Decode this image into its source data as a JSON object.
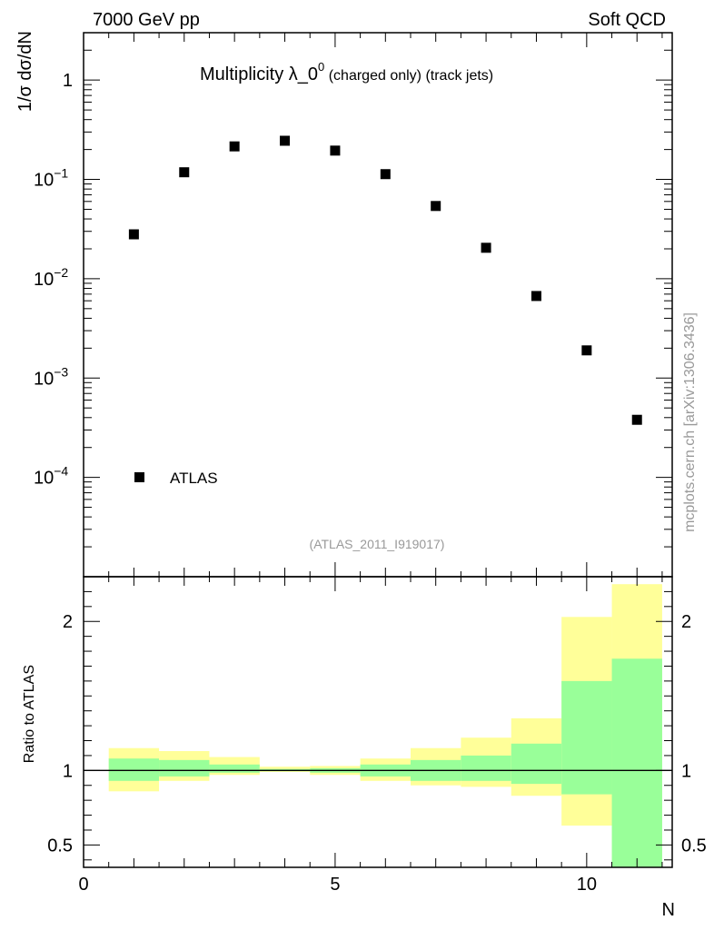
{
  "header": {
    "left": "7000 GeV pp",
    "right": "Soft QCD"
  },
  "side_label": "mcplots.cern.ch [arXiv:1306.3436]",
  "chart_data": [
    {
      "type": "scatter",
      "title_main": "Multiplicity λ_0",
      "title_sup": "0",
      "title_rest": " (charged only) (track jets)",
      "ylabel": "1/σ dσ/dN",
      "yscale": "log",
      "ylim": [
        1e-05,
        3
      ],
      "xlim": [
        0,
        11.7
      ],
      "y_ticks": [
        {
          "v": 1,
          "base": "1",
          "exp": ""
        },
        {
          "v": 0.1,
          "base": "10",
          "exp": "−1"
        },
        {
          "v": 0.01,
          "base": "10",
          "exp": "−2"
        },
        {
          "v": 0.001,
          "base": "10",
          "exp": "−3"
        },
        {
          "v": 0.0001,
          "base": "10",
          "exp": "−4"
        }
      ],
      "legend": [
        "ATLAS"
      ],
      "annotation": "(ATLAS_2011_I919017)",
      "series": [
        {
          "name": "ATLAS",
          "x": [
            1,
            2,
            3,
            4,
            5,
            6,
            7,
            8,
            9,
            10,
            11
          ],
          "values": [
            0.028,
            0.118,
            0.215,
            0.245,
            0.195,
            0.113,
            0.054,
            0.0205,
            0.0067,
            0.0019,
            0.00038
          ]
        }
      ]
    },
    {
      "type": "area",
      "ylabel": "Ratio to ATLAS",
      "xlabel": "N",
      "xlim": [
        0,
        11.7
      ],
      "ylim": [
        0.35,
        2.3
      ],
      "x_ticks": [
        "0",
        "5",
        "10"
      ],
      "y_ticks": [
        "0.5",
        "1",
        "2"
      ],
      "reference": 1,
      "bins": [
        {
          "lo": 0.5,
          "hi": 1.5,
          "stat": [
            0.93,
            1.08
          ],
          "total": [
            0.86,
            1.15
          ]
        },
        {
          "lo": 1.5,
          "hi": 2.5,
          "stat": [
            0.96,
            1.07
          ],
          "total": [
            0.93,
            1.13
          ]
        },
        {
          "lo": 2.5,
          "hi": 3.5,
          "stat": [
            0.985,
            1.04
          ],
          "total": [
            0.97,
            1.09
          ]
        },
        {
          "lo": 3.5,
          "hi": 4.5,
          "stat": [
            0.995,
            1.01
          ],
          "total": [
            0.99,
            1.025
          ]
        },
        {
          "lo": 4.5,
          "hi": 5.5,
          "stat": [
            0.985,
            1.015
          ],
          "total": [
            0.97,
            1.03
          ]
        },
        {
          "lo": 5.5,
          "hi": 6.5,
          "stat": [
            0.96,
            1.04
          ],
          "total": [
            0.93,
            1.08
          ]
        },
        {
          "lo": 6.5,
          "hi": 7.5,
          "stat": [
            0.93,
            1.07
          ],
          "total": [
            0.9,
            1.15
          ]
        },
        {
          "lo": 7.5,
          "hi": 8.5,
          "stat": [
            0.93,
            1.1
          ],
          "total": [
            0.89,
            1.22
          ]
        },
        {
          "lo": 8.5,
          "hi": 9.5,
          "stat": [
            0.91,
            1.18
          ],
          "total": [
            0.83,
            1.35
          ]
        },
        {
          "lo": 9.5,
          "hi": 10.5,
          "stat": [
            0.84,
            1.6
          ],
          "total": [
            0.63,
            2.03
          ]
        },
        {
          "lo": 10.5,
          "hi": 11.5,
          "stat": [
            0.35,
            1.75
          ],
          "total": [
            0.35,
            2.25
          ]
        }
      ],
      "colors": {
        "stat": "#99ff99",
        "total": "#ffff99"
      }
    }
  ]
}
